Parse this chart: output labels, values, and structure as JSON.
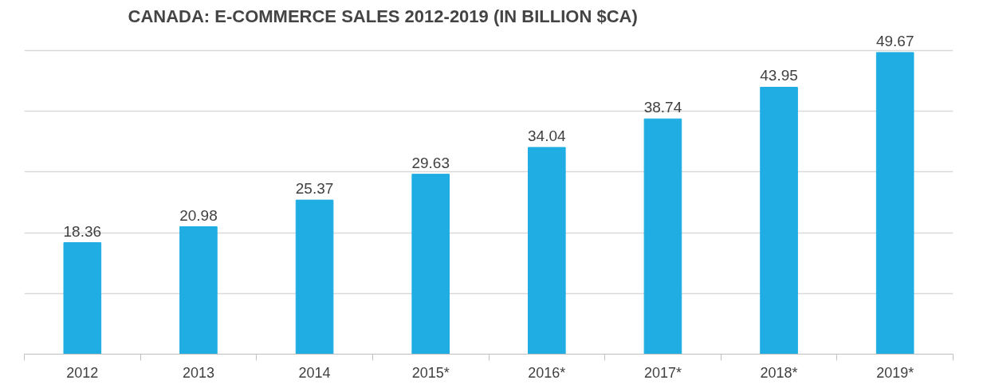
{
  "chart_data": {
    "type": "bar",
    "title": "CANADA: E-COMMERCE SALES 2012-2019 (IN BILLION $CA)",
    "categories": [
      "2012",
      "2013",
      "2014",
      "2015*",
      "2016*",
      "2017*",
      "2018*",
      "2019*"
    ],
    "values": [
      18.36,
      20.98,
      25.37,
      29.63,
      34.04,
      38.74,
      43.95,
      49.67
    ],
    "color": "#1fade3",
    "data_labels": true,
    "yticks": [
      {
        "value": 0,
        "label": null
      },
      {
        "value": 10,
        "label": null
      },
      {
        "value": 20,
        "label": null
      },
      {
        "value": 30,
        "label": null
      },
      {
        "value": 40,
        "label": null
      },
      {
        "value": 50,
        "label": null
      }
    ],
    "grid": "y",
    "tick_labels": "x"
  }
}
